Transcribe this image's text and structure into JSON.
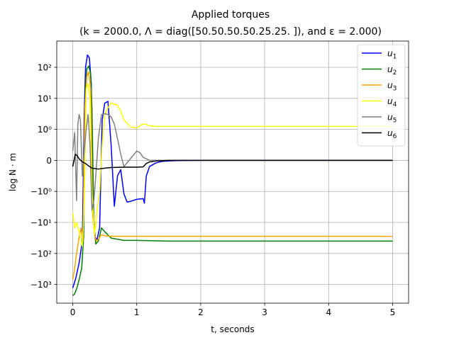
{
  "chart_data": {
    "type": "line",
    "title": "Applied torques",
    "subtitle": "(k = 2000.0, Λ = diag([50.50.50.50.25.25. ]), and ε = 2.000)",
    "xlabel": "t, seconds",
    "ylabel": "log N · m",
    "yscale": "symlog",
    "xlim": [
      -0.25,
      5.25
    ],
    "ylim": [
      -4000,
      700
    ],
    "grid": true,
    "legend_position": "top-right",
    "x_ticks": [
      0,
      1,
      2,
      3,
      4,
      5
    ],
    "x_tick_labels": [
      "0",
      "1",
      "2",
      "3",
      "4",
      "5"
    ],
    "y_ticks": [
      100,
      10,
      1,
      0,
      -1,
      -10,
      -100,
      -1000
    ],
    "y_tick_labels": [
      "10²",
      "10¹",
      "10⁰",
      "0",
      "−10⁰",
      "−10¹",
      "−10²",
      "−10³"
    ],
    "series": [
      {
        "name": "u1",
        "color": "#0000ff",
        "x": [
          0,
          0.05,
          0.1,
          0.15,
          0.18,
          0.2,
          0.23,
          0.26,
          0.29,
          0.32,
          0.35,
          0.38,
          0.42,
          0.46,
          0.5,
          0.55,
          0.6,
          0.65,
          0.7,
          0.75,
          0.8,
          0.85,
          0.9,
          1.0,
          1.1,
          1.12,
          1.15,
          1.2,
          1.3,
          1.4,
          1.6,
          2.0,
          3.0,
          4.0,
          5.0
        ],
        "y": [
          -1300,
          -600,
          -200,
          -40,
          3,
          100,
          250,
          200,
          30,
          -5,
          -30,
          -35,
          -15,
          2,
          7,
          8,
          0.5,
          -3,
          -0.5,
          -0.3,
          -1.2,
          -2.2,
          -2.1,
          -1.8,
          -1.7,
          -2.4,
          -0.5,
          -0.2,
          -0.08,
          -0.03,
          -0.01,
          0,
          0,
          0,
          0
        ]
      },
      {
        "name": "u2",
        "color": "#008000",
        "x": [
          0,
          0.03,
          0.07,
          0.1,
          0.14,
          0.17,
          0.2,
          0.22,
          0.25,
          0.28,
          0.3,
          0.33,
          0.36,
          0.4,
          0.45,
          0.5,
          0.6,
          0.8,
          1.0,
          1.5,
          2.0,
          3.0,
          4.0,
          5.0
        ],
        "y": [
          -2300,
          -2000,
          -1200,
          -700,
          -300,
          -30,
          20,
          90,
          110,
          60,
          5,
          -10,
          -50,
          -40,
          -15,
          -20,
          -32,
          -38,
          -38,
          -40,
          -40,
          -40,
          -40,
          -40
        ]
      },
      {
        "name": "u3",
        "color": "#ffa500",
        "x": [
          0,
          0.03,
          0.06,
          0.1,
          0.13,
          0.16,
          0.19,
          0.22,
          0.25,
          0.28,
          0.31,
          0.34,
          0.37,
          0.4,
          0.45,
          0.5,
          0.6,
          0.8,
          1.0,
          1.5,
          2.0,
          3.0,
          4.0,
          5.0
        ],
        "y": [
          -700,
          -300,
          -100,
          -30,
          -15,
          -40,
          5,
          50,
          70,
          20,
          -5,
          -25,
          -40,
          -35,
          -25,
          -27,
          -28,
          -28,
          -28,
          -28,
          -28,
          -28,
          -28,
          -28
        ]
      },
      {
        "name": "u4",
        "color": "#ffff00",
        "x": [
          0,
          0.03,
          0.06,
          0.1,
          0.15,
          0.18,
          0.21,
          0.24,
          0.27,
          0.3,
          0.34,
          0.38,
          0.42,
          0.46,
          0.5,
          0.55,
          0.6,
          0.65,
          0.7,
          0.75,
          0.8,
          0.85,
          0.9,
          1.0,
          1.05,
          1.1,
          1.15,
          1.2,
          1.3,
          1.5,
          2.0,
          3.0,
          4.0,
          5.0
        ],
        "y": [
          -5,
          -15,
          -10,
          -20,
          -60,
          -2,
          20,
          30,
          10,
          -1,
          -25,
          -4,
          -1,
          0.5,
          3,
          5,
          7,
          6.5,
          6,
          4,
          2,
          1.6,
          1.2,
          1.1,
          1.3,
          1.5,
          1.45,
          1.3,
          1.25,
          1.25,
          1.25,
          1.25,
          1.25,
          1.25
        ]
      },
      {
        "name": "u5",
        "color": "#808080",
        "x": [
          0,
          0.03,
          0.06,
          0.08,
          0.1,
          0.12,
          0.15,
          0.18,
          0.21,
          0.24,
          0.27,
          0.3,
          0.33,
          0.36,
          0.4,
          0.45,
          0.5,
          0.55,
          0.6,
          0.65,
          0.7,
          0.75,
          0.8,
          0.9,
          1.0,
          1.05,
          1.1,
          1.15,
          1.2,
          1.3,
          1.5,
          2.0,
          3.0,
          4.0,
          5.0
        ],
        "y": [
          0.3,
          0.9,
          -2,
          1.5,
          3,
          2,
          -0.5,
          0.3,
          1,
          3,
          0.5,
          -4,
          -2,
          -0.5,
          0.7,
          3,
          3.2,
          3,
          2.5,
          1.5,
          0.7,
          0.2,
          -0.2,
          0.05,
          0.3,
          0.25,
          0.1,
          0.05,
          0,
          0,
          0,
          0,
          0,
          0,
          0
        ]
      },
      {
        "name": "u6",
        "color": "#000000",
        "x": [
          0,
          0.02,
          0.04,
          0.07,
          0.1,
          0.15,
          0.2,
          0.25,
          0.3,
          0.4,
          0.5,
          0.6,
          0.8,
          1.0,
          1.1,
          1.15,
          1.2,
          1.3,
          1.5,
          2.0,
          3.0,
          4.0,
          5.0
        ],
        "y": [
          -0.2,
          0,
          0.2,
          0.15,
          0.05,
          -0.05,
          -0.1,
          -0.18,
          -0.25,
          -0.28,
          -0.25,
          -0.23,
          -0.22,
          -0.22,
          -0.21,
          -0.1,
          -0.05,
          -0.02,
          0,
          0,
          0,
          0,
          0
        ]
      }
    ]
  }
}
